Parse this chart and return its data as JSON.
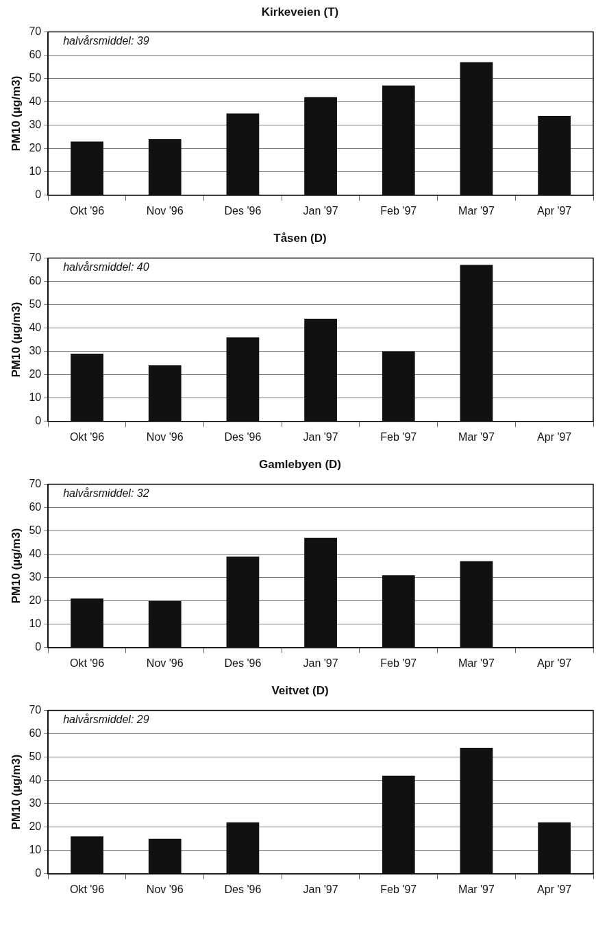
{
  "chart_data": [
    {
      "type": "bar",
      "title": "Kirkeveien (T)",
      "ylabel": "PM10 (µg/m3)",
      "categories": [
        "Okt '96",
        "Nov '96",
        "Des '96",
        "Jan '97",
        "Feb '97",
        "Mar '97",
        "Apr '97"
      ],
      "values": [
        23,
        24,
        35,
        42,
        47,
        57,
        34
      ],
      "color": "#111111",
      "ylim": [
        0,
        70
      ],
      "yticks": [
        0,
        10,
        20,
        30,
        40,
        50,
        60,
        70
      ],
      "grid": "y",
      "legend": false,
      "annotations": [
        "halvårsmiddel: 39"
      ]
    },
    {
      "type": "bar",
      "title": "Tåsen (D)",
      "ylabel": "PM10 (µg/m3)",
      "categories": [
        "Okt '96",
        "Nov '96",
        "Des '96",
        "Jan '97",
        "Feb '97",
        "Mar '97",
        "Apr '97"
      ],
      "values": [
        29,
        24,
        36,
        44,
        30,
        67,
        null
      ],
      "color": "#111111",
      "ylim": [
        0,
        70
      ],
      "yticks": [
        0,
        10,
        20,
        30,
        40,
        50,
        60,
        70
      ],
      "grid": "y",
      "legend": false,
      "annotations": [
        "halvårsmiddel: 40"
      ]
    },
    {
      "type": "bar",
      "title": "Gamlebyen (D)",
      "ylabel": "PM10 (µg/m3)",
      "categories": [
        "Okt '96",
        "Nov '96",
        "Des '96",
        "Jan '97",
        "Feb '97",
        "Mar '97",
        "Apr '97"
      ],
      "values": [
        21,
        20,
        39,
        47,
        31,
        37,
        null
      ],
      "color": "#111111",
      "ylim": [
        0,
        70
      ],
      "yticks": [
        0,
        10,
        20,
        30,
        40,
        50,
        60,
        70
      ],
      "grid": "y",
      "legend": false,
      "annotations": [
        "halvårsmiddel: 32"
      ]
    },
    {
      "type": "bar",
      "title": "Veitvet (D)",
      "ylabel": "PM10 (µg/m3)",
      "categories": [
        "Okt '96",
        "Nov '96",
        "Des '96",
        "Jan '97",
        "Feb '97",
        "Mar '97",
        "Apr '97"
      ],
      "values": [
        16,
        15,
        22,
        null,
        42,
        54,
        22
      ],
      "color": "#111111",
      "ylim": [
        0,
        70
      ],
      "yticks": [
        0,
        10,
        20,
        30,
        40,
        50,
        60,
        70
      ],
      "grid": "y",
      "legend": false,
      "annotations": [
        "halvårsmiddel: 29"
      ]
    }
  ]
}
